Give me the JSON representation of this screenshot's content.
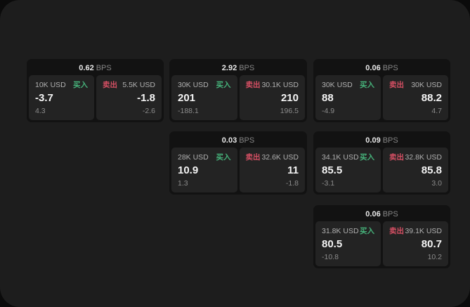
{
  "labels": {
    "bps": "BPS",
    "buy": "买入",
    "sell": "卖出"
  },
  "colors": {
    "outer_background": "#0b0b0b",
    "panel_background": "#1d1d1d",
    "card_background": "#121212",
    "pane_background": "#232323",
    "buy_accent": "#46b27a",
    "sell_accent": "#d44f63"
  },
  "cards": [
    {
      "spread_bps": "0.62",
      "buy": {
        "size": "10K USD",
        "price": "-3.7",
        "sub": "4.3"
      },
      "sell": {
        "size": "5.5K USD",
        "price": "-1.8",
        "sub": "-2.6"
      }
    },
    {
      "spread_bps": "2.92",
      "buy": {
        "size": "30K USD",
        "price": "201",
        "sub": "-188.1"
      },
      "sell": {
        "size": "30.1K USD",
        "price": "210",
        "sub": "196.5"
      }
    },
    {
      "spread_bps": "0.06",
      "buy": {
        "size": "30K USD",
        "price": "88",
        "sub": "-4.9"
      },
      "sell": {
        "size": "30K USD",
        "price": "88.2",
        "sub": "4.7"
      }
    },
    {
      "spread_bps": "0.03",
      "buy": {
        "size": "28K USD",
        "price": "10.9",
        "sub": "1.3"
      },
      "sell": {
        "size": "32.6K USD",
        "price": "11",
        "sub": "-1.8"
      }
    },
    {
      "spread_bps": "0.09",
      "buy": {
        "size": "34.1K USD",
        "price": "85.5",
        "sub": "-3.1"
      },
      "sell": {
        "size": "32.8K USD",
        "price": "85.8",
        "sub": "3.0"
      }
    },
    {
      "spread_bps": "0.06",
      "buy": {
        "size": "31.8K USD",
        "price": "80.5",
        "sub": "-10.8"
      },
      "sell": {
        "size": "39.1K USD",
        "price": "80.7",
        "sub": "10.2"
      }
    }
  ]
}
